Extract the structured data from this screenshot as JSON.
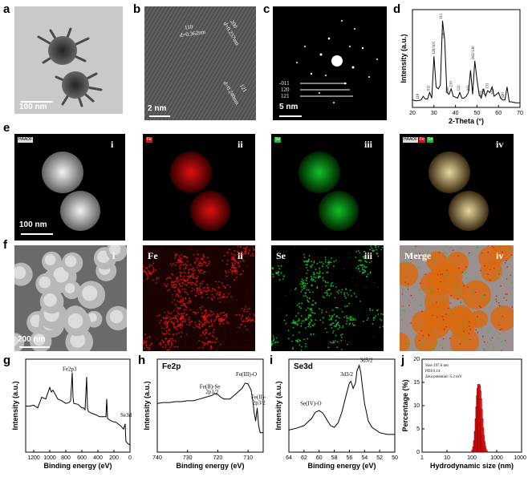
{
  "panels": {
    "a": {
      "letter": "a",
      "scale": "100 nm"
    },
    "b": {
      "letter": "b",
      "scale": "2 nm",
      "annotations": [
        "110",
        "d=0.362nm",
        "200",
        "d=0.257nm",
        "d=0.240nm",
        "121"
      ]
    },
    "c": {
      "letter": "c",
      "scale": "5 nm",
      "rings": [
        "-011",
        "120",
        "121"
      ]
    },
    "d": {
      "letter": "d"
    },
    "e": {
      "letter": "e",
      "scale": "100 nm",
      "tiles": [
        {
          "roman": "i",
          "label": "HAADF"
        },
        {
          "roman": "ii",
          "label": "Fe"
        },
        {
          "roman": "iii",
          "label": "Se"
        },
        {
          "roman": "iv",
          "labels": [
            "HAADF",
            "Fe",
            "Se"
          ]
        }
      ]
    },
    "f": {
      "letter": "f",
      "scale": "200 nm",
      "tiles": [
        {
          "roman": "i",
          "label": ""
        },
        {
          "roman": "ii",
          "label": "Fe"
        },
        {
          "roman": "iii",
          "label": "Se"
        },
        {
          "roman": "iv",
          "label": "Merge"
        }
      ]
    },
    "g": {
      "letter": "g"
    },
    "h": {
      "letter": "h"
    },
    "i": {
      "letter": "i"
    },
    "j": {
      "letter": "j"
    }
  },
  "colors": {
    "fe": "#e01010",
    "se": "#12c027",
    "hist": "#e01010"
  },
  "chart_data": [
    {
      "id": "d",
      "type": "line",
      "xlabel": "2-Theta (°)",
      "ylabel": "Intensity (a.u.)",
      "xlim": [
        20,
        70
      ],
      "xticks": [
        20,
        30,
        40,
        50,
        60,
        70
      ],
      "x": [
        20,
        22,
        24,
        25,
        26,
        27,
        28,
        29,
        30,
        31,
        32,
        33,
        34,
        35,
        35.5,
        36,
        37,
        38,
        39,
        40,
        41,
        42,
        43,
        44,
        45,
        46,
        47,
        48,
        49,
        50,
        51,
        52,
        53,
        54,
        55,
        56,
        57,
        58,
        59,
        60,
        61,
        62,
        63,
        64,
        65,
        66,
        68,
        70
      ],
      "y": [
        0.08,
        0.07,
        0.08,
        0.12,
        0.09,
        0.09,
        0.16,
        0.1,
        0.55,
        0.22,
        0.2,
        0.24,
        0.93,
        0.72,
        0.45,
        0.16,
        0.14,
        0.2,
        0.12,
        0.11,
        0.1,
        0.16,
        0.1,
        0.1,
        0.12,
        0.16,
        0.4,
        0.14,
        0.5,
        0.3,
        0.14,
        0.1,
        0.2,
        0.12,
        0.18,
        0.16,
        0.22,
        0.12,
        0.14,
        0.16,
        0.1,
        0.08,
        0.08,
        0.22,
        0.06,
        0.06,
        0.05,
        0.05
      ],
      "peak_labels": [
        {
          "x": 23,
          "text": "110"
        },
        {
          "x": 28,
          "text": "011"
        },
        {
          "x": 30.5,
          "text": "120/101"
        },
        {
          "x": 33.8,
          "text": "111"
        },
        {
          "x": 35,
          "text": "120"
        },
        {
          "x": 36.8,
          "text": "200"
        },
        {
          "x": 38.5,
          "text": "210"
        },
        {
          "x": 42,
          "text": "121"
        },
        {
          "x": 46.5,
          "text": "211"
        },
        {
          "x": 48.8,
          "text": "002/130"
        },
        {
          "x": 52,
          "text": "031"
        },
        {
          "x": 53.6,
          "text": "221"
        },
        {
          "x": 55.2,
          "text": "131"
        },
        {
          "x": 57.8,
          "text": "310"
        },
        {
          "x": 62.5,
          "text": "320"
        }
      ]
    },
    {
      "id": "g",
      "type": "line",
      "xlabel": "Binding energy (eV)",
      "ylabel": "Intensity (a.u.)",
      "xlim": [
        1300,
        0
      ],
      "xticks": [
        1200,
        1000,
        800,
        600,
        400,
        200,
        0
      ],
      "x": [
        1300,
        1250,
        1200,
        1150,
        1100,
        1050,
        1000,
        980,
        960,
        900,
        850,
        800,
        760,
        740,
        720,
        710,
        700,
        650,
        600,
        580,
        560,
        540,
        530,
        520,
        480,
        420,
        380,
        340,
        300,
        290,
        280,
        250,
        200,
        180,
        150,
        120,
        100,
        80,
        60,
        55,
        50,
        30,
        0
      ],
      "y": [
        0.52,
        0.52,
        0.53,
        0.5,
        0.62,
        0.6,
        0.73,
        0.68,
        0.7,
        0.6,
        0.58,
        0.55,
        0.56,
        0.58,
        0.9,
        0.62,
        0.55,
        0.54,
        0.5,
        0.5,
        0.48,
        0.85,
        0.5,
        0.46,
        0.44,
        0.42,
        0.4,
        0.4,
        0.4,
        0.6,
        0.38,
        0.36,
        0.34,
        0.34,
        0.32,
        0.3,
        0.28,
        0.26,
        0.32,
        0.2,
        0.12,
        0.1,
        0.08
      ],
      "annotations": [
        {
          "x": 720,
          "text": "Fe2p3"
        },
        {
          "x": 55,
          "text": "Se3d"
        }
      ]
    },
    {
      "id": "h",
      "type": "line",
      "title": "Fe2p",
      "xlabel": "Binding energy (eV)",
      "ylabel": "Intensity (a.u.)",
      "xlim": [
        740,
        705
      ],
      "xticks": [
        740,
        730,
        720,
        710
      ],
      "x": [
        740,
        738,
        736,
        734,
        732,
        730,
        728,
        726,
        724,
        722,
        721,
        720,
        719,
        718,
        716,
        714,
        712,
        711,
        710,
        709,
        708.5,
        708,
        707.5,
        707,
        706.5,
        706,
        705.5,
        705
      ],
      "y": [
        0.55,
        0.56,
        0.56,
        0.57,
        0.57,
        0.58,
        0.58,
        0.6,
        0.62,
        0.64,
        0.66,
        0.65,
        0.62,
        0.6,
        0.6,
        0.66,
        0.72,
        0.78,
        0.77,
        0.7,
        0.6,
        0.45,
        0.35,
        0.5,
        0.3,
        0.22,
        0.22,
        0.22
      ],
      "annotations": [
        {
          "x": 721,
          "text": "Fe(II)-Se\n2p1/2"
        },
        {
          "x": 711,
          "text": "Fe(III)-O"
        },
        {
          "x": 707,
          "text": "Fe(II)-Se\n2p3/2"
        }
      ]
    },
    {
      "id": "i",
      "type": "line",
      "title": "Se3d",
      "xlabel": "Binding energy (eV)",
      "ylabel": "Intensity (a.u.)",
      "xlim": [
        64,
        50
      ],
      "xticks": [
        64,
        62,
        60,
        58,
        56,
        54,
        52,
        50
      ],
      "x": [
        64,
        63,
        62,
        61,
        60.5,
        60,
        59.5,
        59,
        58.5,
        58,
        57.5,
        57,
        56.5,
        56,
        55.8,
        55.5,
        55.2,
        55,
        54.7,
        54.5,
        54.3,
        54,
        53.5,
        53,
        52.5,
        52,
        51,
        50
      ],
      "y": [
        0.25,
        0.27,
        0.3,
        0.38,
        0.45,
        0.47,
        0.44,
        0.37,
        0.3,
        0.28,
        0.33,
        0.45,
        0.62,
        0.78,
        0.8,
        0.72,
        0.78,
        0.92,
        0.98,
        0.9,
        0.75,
        0.55,
        0.35,
        0.28,
        0.25,
        0.22,
        0.2,
        0.2
      ],
      "annotations": [
        {
          "x": 60.2,
          "text": "Se(IV)-O"
        },
        {
          "x": 56,
          "text": "3d3/2"
        },
        {
          "x": 54.7,
          "text": "3d5/2"
        }
      ]
    },
    {
      "id": "j",
      "type": "bar",
      "xlabel": "Hydrodynamic size (nm)",
      "ylabel": "Percentage (%)",
      "xscale": "log",
      "xlim": [
        1,
        10000
      ],
      "ylim": [
        0,
        20
      ],
      "xticks": [
        1,
        10,
        100,
        1000,
        10000
      ],
      "yticks": [
        0,
        5,
        10,
        15,
        20
      ],
      "legend_text": [
        "Size:197.6 nm",
        "PDI:0.14",
        "Zeta potential:-5.2 mV"
      ],
      "x": [
        110,
        120,
        130,
        140,
        150,
        160,
        170,
        180,
        190,
        200,
        210,
        225,
        240,
        255,
        270,
        290,
        310,
        330,
        350,
        380
      ],
      "values": [
        0.5,
        1.2,
        2.5,
        4.5,
        7.2,
        9.8,
        12.2,
        13.8,
        14.6,
        14.3,
        13.2,
        11.5,
        9.3,
        7.2,
        5.2,
        3.6,
        2.3,
        1.3,
        0.7,
        0.3
      ]
    }
  ]
}
